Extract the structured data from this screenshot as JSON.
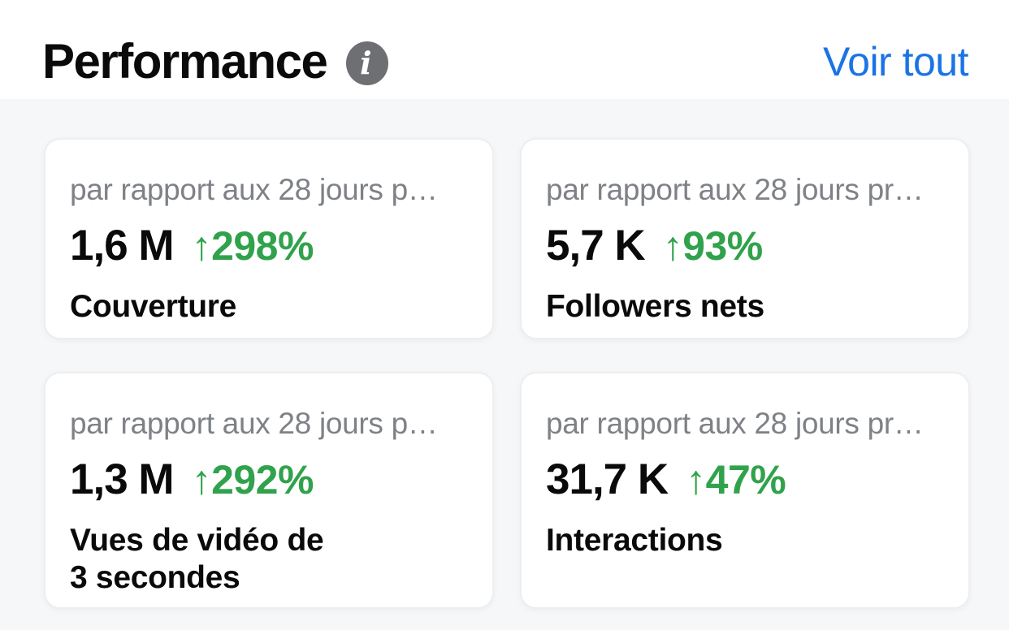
{
  "header": {
    "title": "Performance",
    "info_glyph": "i",
    "see_all_label": "Voir tout"
  },
  "colors": {
    "accent_blue": "#1b74e4",
    "positive_green": "#31a24c",
    "primary_text": "#0a0a0a",
    "secondary_text": "#7e8186",
    "card_background": "#ffffff",
    "page_background": "#f6f7f9",
    "info_icon_gray": "#6d6f73"
  },
  "cards": [
    {
      "comparison": "par rapport aux 28 jours p…",
      "value": "1,6 M",
      "delta": "↑298%",
      "label": "Couverture"
    },
    {
      "comparison": "par rapport aux 28 jours pr…",
      "value": "5,7 K",
      "delta": "↑93%",
      "label": "Followers nets"
    },
    {
      "comparison": "par rapport aux 28 jours p…",
      "value": "1,3 M",
      "delta": "↑292%",
      "label": "Vues de vidéo de\n3 secondes"
    },
    {
      "comparison": "par rapport aux 28 jours pr…",
      "value": "31,7 K",
      "delta": "↑47%",
      "label": "Interactions"
    }
  ]
}
